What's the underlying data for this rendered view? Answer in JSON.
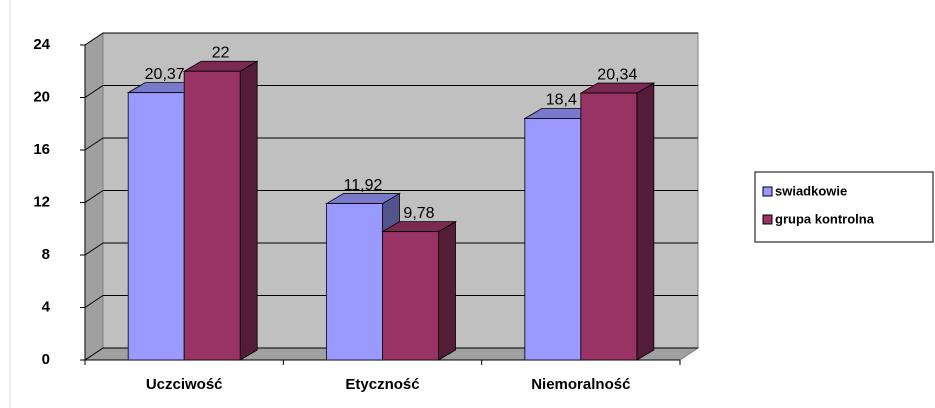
{
  "chart_data": {
    "type": "bar3d",
    "categories": [
      "Uczciwość",
      "Etyczność",
      "Niemoralność"
    ],
    "series": [
      {
        "name": "swiadkowie",
        "color": "#9999ff",
        "values": [
          20.37,
          11.92,
          18.4
        ],
        "value_labels": [
          "20,37",
          "11,92",
          "18,4"
        ]
      },
      {
        "name": "grupa kontrolna",
        "color": "#993366",
        "values": [
          22,
          9.78,
          20.34
        ],
        "value_labels": [
          "22",
          "9,78",
          "20,34"
        ]
      }
    ],
    "ylim": [
      0,
      24
    ],
    "yticks": [
      0,
      4,
      8,
      12,
      16,
      20,
      24
    ],
    "grid": true,
    "legend": "right"
  }
}
